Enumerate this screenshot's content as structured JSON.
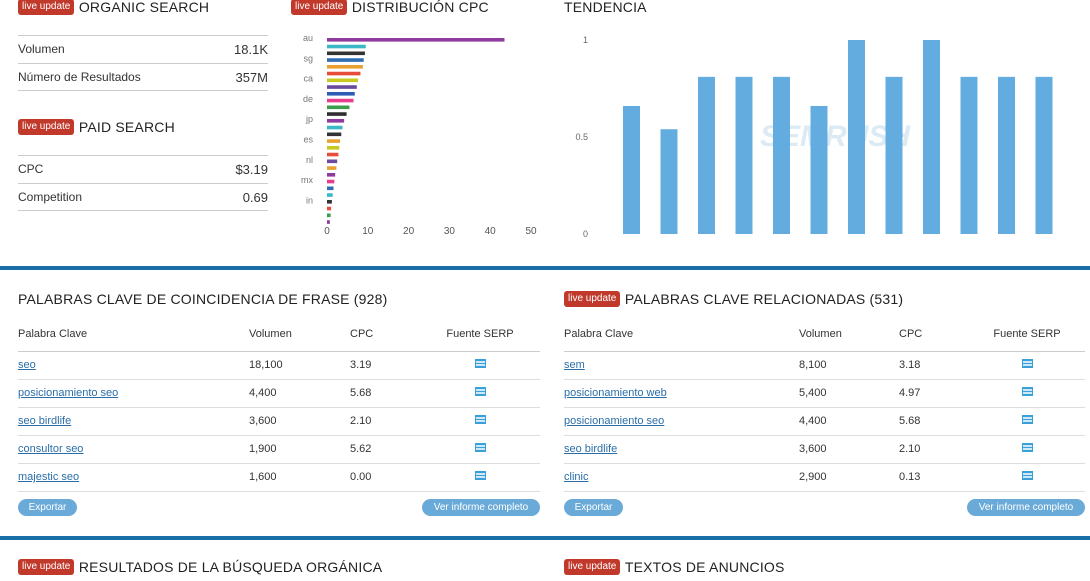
{
  "badge_label": "live update",
  "organic": {
    "title": "ORGANIC SEARCH",
    "rows": [
      {
        "label": "Volumen",
        "value": "18.1K"
      },
      {
        "label": "Número de Resultados",
        "value": "357M"
      }
    ]
  },
  "paid": {
    "title": "PAID SEARCH",
    "rows": [
      {
        "label": "CPC",
        "value": "$3.19"
      },
      {
        "label": "Competition",
        "value": "0.69"
      }
    ]
  },
  "cpc_dist": {
    "title": "DISTRIBUCIÓN CPC",
    "chart_data": {
      "type": "bar",
      "orientation": "horizontal",
      "category_labels": [
        "au",
        "sg",
        "ca",
        "de",
        "jp",
        "es",
        "nl",
        "mx",
        "in"
      ],
      "values": [
        43.5,
        9.5,
        9.3,
        9.0,
        8.8,
        8.2,
        7.6,
        7.3,
        6.8,
        6.5,
        5.5,
        4.8,
        4.2,
        3.8,
        3.5,
        3.2,
        3.0,
        2.8,
        2.5,
        2.3,
        2.0,
        1.8,
        1.6,
        1.4,
        1.2,
        1.0,
        0.9,
        0.7
      ],
      "colors": [
        "#8e3a9e",
        "#3ab8c8",
        "#333333",
        "#2e6db4",
        "#e8a030",
        "#e84d3c",
        "#c8c820",
        "#6a4a9e",
        "#2e5db4",
        "#e83c8c",
        "#3a9e4a",
        "#2e2e2e",
        "#8e3a9e",
        "#3ab8c8",
        "#333333",
        "#e8a030",
        "#c8c820",
        "#e84d3c",
        "#6a4a9e",
        "#e8a030",
        "#8e3a9e",
        "#e83c8c",
        "#2e6db4",
        "#3ab8c8",
        "#333333",
        "#e84d3c",
        "#3a9e4a",
        "#8e3a9e"
      ],
      "xticks": [
        0,
        10,
        20,
        30,
        40,
        50
      ],
      "xlim": [
        0,
        50
      ]
    }
  },
  "trend": {
    "title": "TENDENCIA",
    "chart_data": {
      "type": "bar",
      "values": [
        0.66,
        0.54,
        0.81,
        0.81,
        0.81,
        0.66,
        1.0,
        0.81,
        1.0,
        0.81,
        0.81,
        0.81
      ],
      "yticks": [
        "1",
        "0.5",
        "0"
      ],
      "ylim": [
        0,
        1
      ],
      "color": "#62ace0"
    },
    "watermark": "SEMRUSH"
  },
  "phrase": {
    "title": "PALABRAS CLAVE DE COINCIDENCIA DE FRASE (928)",
    "headers": [
      "Palabra Clave",
      "Volumen",
      "CPC",
      "Fuente SERP"
    ],
    "rows": [
      {
        "kw": "seo",
        "vol": "18,100",
        "cpc": "3.19"
      },
      {
        "kw": "posicionamiento seo",
        "vol": "4,400",
        "cpc": "5.68"
      },
      {
        "kw": "seo birdlife",
        "vol": "3,600",
        "cpc": "2.10"
      },
      {
        "kw": "consultor seo",
        "vol": "1,900",
        "cpc": "5.62"
      },
      {
        "kw": "majestic seo",
        "vol": "1,600",
        "cpc": "0.00"
      }
    ],
    "export_label": "Exportar",
    "report_label": "Ver informe completo"
  },
  "related": {
    "title": "PALABRAS CLAVE RELACIONADAS (531)",
    "headers": [
      "Palabra Clave",
      "Volumen",
      "CPC",
      "Fuente SERP"
    ],
    "rows": [
      {
        "kw": "sem",
        "vol": "8,100",
        "cpc": "3.18"
      },
      {
        "kw": "posicionamiento web",
        "vol": "5,400",
        "cpc": "4.97"
      },
      {
        "kw": "posicionamiento seo",
        "vol": "4,400",
        "cpc": "5.68"
      },
      {
        "kw": "seo birdlife",
        "vol": "3,600",
        "cpc": "2.10"
      },
      {
        "kw": "clinic",
        "vol": "2,900",
        "cpc": "0.13"
      }
    ],
    "export_label": "Exportar",
    "report_label": "Ver informe completo"
  },
  "organic_results": {
    "title": "RESULTADOS DE LA BÚSQUEDA ORGÁNICA"
  },
  "ads": {
    "title": "TEXTOS DE ANUNCIOS"
  }
}
